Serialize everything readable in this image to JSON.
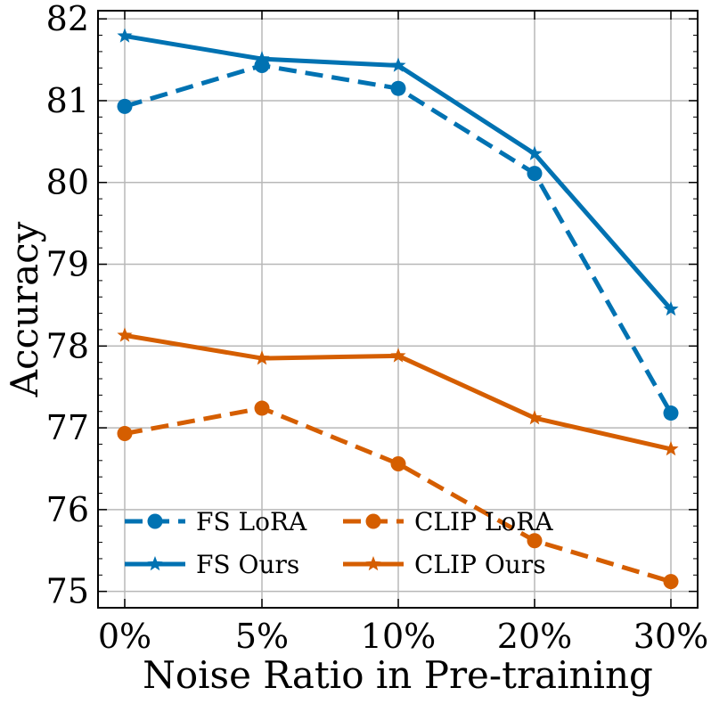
{
  "chart_data": {
    "type": "line",
    "title": "",
    "xlabel": "Noise Ratio in Pre-training",
    "ylabel": "Accuracy",
    "categories": [
      "0%",
      "5%",
      "10%",
      "20%",
      "30%"
    ],
    "ylim": [
      74.8,
      82.1
    ],
    "yticks": [
      "75",
      "76",
      "77",
      "78",
      "79",
      "80",
      "81",
      "82"
    ],
    "grid": true,
    "legend_position": "bottom-left",
    "series": [
      {
        "name": "FS LoRA",
        "values": [
          80.93,
          81.43,
          81.15,
          80.11,
          77.18
        ],
        "color": "#0072b2",
        "dash": "dashed",
        "marker": "circle"
      },
      {
        "name": "FS Ours",
        "values": [
          81.79,
          81.51,
          81.43,
          80.35,
          78.45
        ],
        "color": "#0072b2",
        "dash": "solid",
        "marker": "star"
      },
      {
        "name": "CLIP LoRA",
        "values": [
          76.93,
          77.24,
          76.56,
          75.62,
          75.12
        ],
        "color": "#d55e00",
        "dash": "dashed",
        "marker": "circle"
      },
      {
        "name": "CLIP Ours",
        "values": [
          78.13,
          77.85,
          77.88,
          77.12,
          76.74
        ],
        "color": "#d55e00",
        "dash": "solid",
        "marker": "star"
      }
    ]
  }
}
